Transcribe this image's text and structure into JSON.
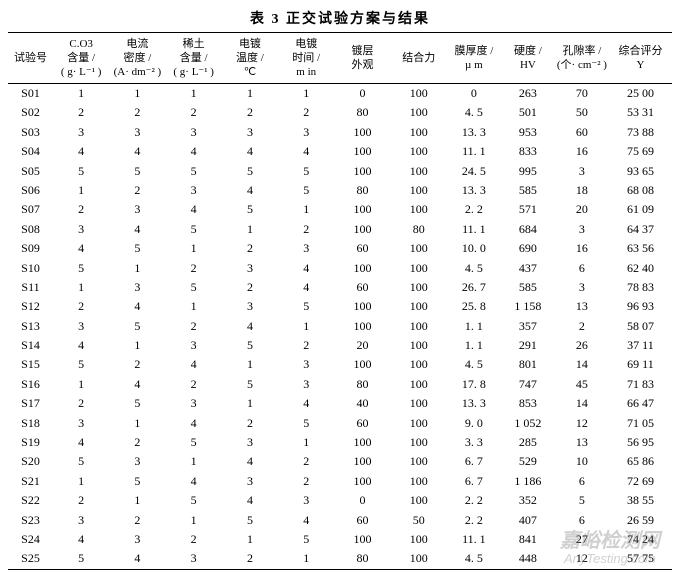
{
  "title": "表 3  正交试验方案与结果",
  "columns": [
    {
      "key": "id",
      "label": "试验号",
      "class": "col-id"
    },
    {
      "key": "c1",
      "label": "C.O3\n含量 /\n( g· L⁻¹ )",
      "class": "col-f"
    },
    {
      "key": "c2",
      "label": "电流\n密度 /\n(A· dm⁻² )",
      "class": "col-f"
    },
    {
      "key": "c3",
      "label": "稀土\n含量 /\n( g· L⁻¹ )",
      "class": "col-f"
    },
    {
      "key": "c4",
      "label": "电镀\n温度 /\n℃",
      "class": "col-f"
    },
    {
      "key": "c5",
      "label": "电镀\n时间 /\nm in",
      "class": "col-f"
    },
    {
      "key": "c6",
      "label": "镀层\n外观",
      "class": "col-f"
    },
    {
      "key": "c7",
      "label": "结合力",
      "class": "col-f"
    },
    {
      "key": "c8",
      "label": "膜厚度 /\nµ m",
      "class": "col-n"
    },
    {
      "key": "c9",
      "label": "硬度 /\nHV",
      "class": "col-n"
    },
    {
      "key": "c10",
      "label": "孔隙率 /\n(个· cm⁻² )",
      "class": "col-n"
    },
    {
      "key": "c11",
      "label": "综合评分\nY",
      "class": "col-last"
    }
  ],
  "rows": [
    [
      "S01",
      "1",
      "1",
      "1",
      "1",
      "1",
      "0",
      "100",
      "0",
      "263",
      "70",
      "25 00"
    ],
    [
      "S02",
      "2",
      "2",
      "2",
      "2",
      "2",
      "80",
      "100",
      "4. 5",
      "501",
      "50",
      "53 31"
    ],
    [
      "S03",
      "3",
      "3",
      "3",
      "3",
      "3",
      "100",
      "100",
      "13. 3",
      "953",
      "60",
      "73 88"
    ],
    [
      "S04",
      "4",
      "4",
      "4",
      "4",
      "4",
      "100",
      "100",
      "11. 1",
      "833",
      "16",
      "75 69"
    ],
    [
      "S05",
      "5",
      "5",
      "5",
      "5",
      "5",
      "100",
      "100",
      "24. 5",
      "995",
      "3",
      "93 65"
    ],
    [
      "S06",
      "1",
      "2",
      "3",
      "4",
      "5",
      "80",
      "100",
      "13. 3",
      "585",
      "18",
      "68 08"
    ],
    [
      "S07",
      "2",
      "3",
      "4",
      "5",
      "1",
      "100",
      "100",
      "2. 2",
      "571",
      "20",
      "61 09"
    ],
    [
      "S08",
      "3",
      "4",
      "5",
      "1",
      "2",
      "100",
      "80",
      "11. 1",
      "684",
      "3",
      "64 37"
    ],
    [
      "S09",
      "4",
      "5",
      "1",
      "2",
      "3",
      "60",
      "100",
      "10. 0",
      "690",
      "16",
      "63 56"
    ],
    [
      "S10",
      "5",
      "1",
      "2",
      "3",
      "4",
      "100",
      "100",
      "4. 5",
      "437",
      "6",
      "62 40"
    ],
    [
      "S11",
      "1",
      "3",
      "5",
      "2",
      "4",
      "60",
      "100",
      "26. 7",
      "585",
      "3",
      "78 83"
    ],
    [
      "S12",
      "2",
      "4",
      "1",
      "3",
      "5",
      "100",
      "100",
      "25. 8",
      "1 158",
      "13",
      "96 93"
    ],
    [
      "S13",
      "3",
      "5",
      "2",
      "4",
      "1",
      "100",
      "100",
      "1. 1",
      "357",
      "2",
      "58 07"
    ],
    [
      "S14",
      "4",
      "1",
      "3",
      "5",
      "2",
      "20",
      "100",
      "1. 1",
      "291",
      "26",
      "37 11"
    ],
    [
      "S15",
      "5",
      "2",
      "4",
      "1",
      "3",
      "100",
      "100",
      "4. 5",
      "801",
      "14",
      "69 11"
    ],
    [
      "S16",
      "1",
      "4",
      "2",
      "5",
      "3",
      "80",
      "100",
      "17. 8",
      "747",
      "45",
      "71 83"
    ],
    [
      "S17",
      "2",
      "5",
      "3",
      "1",
      "4",
      "40",
      "100",
      "13. 3",
      "853",
      "14",
      "66 47"
    ],
    [
      "S18",
      "3",
      "1",
      "4",
      "2",
      "5",
      "60",
      "100",
      "9. 0",
      "1 052",
      "12",
      "71 05"
    ],
    [
      "S19",
      "4",
      "2",
      "5",
      "3",
      "1",
      "100",
      "100",
      "3. 3",
      "285",
      "13",
      "56 95"
    ],
    [
      "S20",
      "5",
      "3",
      "1",
      "4",
      "2",
      "100",
      "100",
      "6. 7",
      "529",
      "10",
      "65 86"
    ],
    [
      "S21",
      "1",
      "5",
      "4",
      "3",
      "2",
      "100",
      "100",
      "6. 7",
      "1 186",
      "6",
      "72 69"
    ],
    [
      "S22",
      "2",
      "1",
      "5",
      "4",
      "3",
      "0",
      "100",
      "2. 2",
      "352",
      "5",
      "38 55"
    ],
    [
      "S23",
      "3",
      "2",
      "1",
      "5",
      "4",
      "60",
      "50",
      "2. 2",
      "407",
      "6",
      "26 59"
    ],
    [
      "S24",
      "4",
      "3",
      "2",
      "1",
      "5",
      "100",
      "100",
      "11. 1",
      "841",
      "27",
      "74 24"
    ],
    [
      "S25",
      "5",
      "4",
      "3",
      "2",
      "1",
      "80",
      "100",
      "4. 5",
      "448",
      "12",
      "57 75"
    ]
  ],
  "watermark": {
    "line1": "嘉峪检测网",
    "line2": "AnyTesting.com"
  },
  "style": {
    "background_color": "#ffffff",
    "text_color": "#000000",
    "border_color": "#000000",
    "font_family": "SimSun, serif",
    "title_fontsize": 14,
    "header_fontsize": 11,
    "body_fontsize": 12
  }
}
